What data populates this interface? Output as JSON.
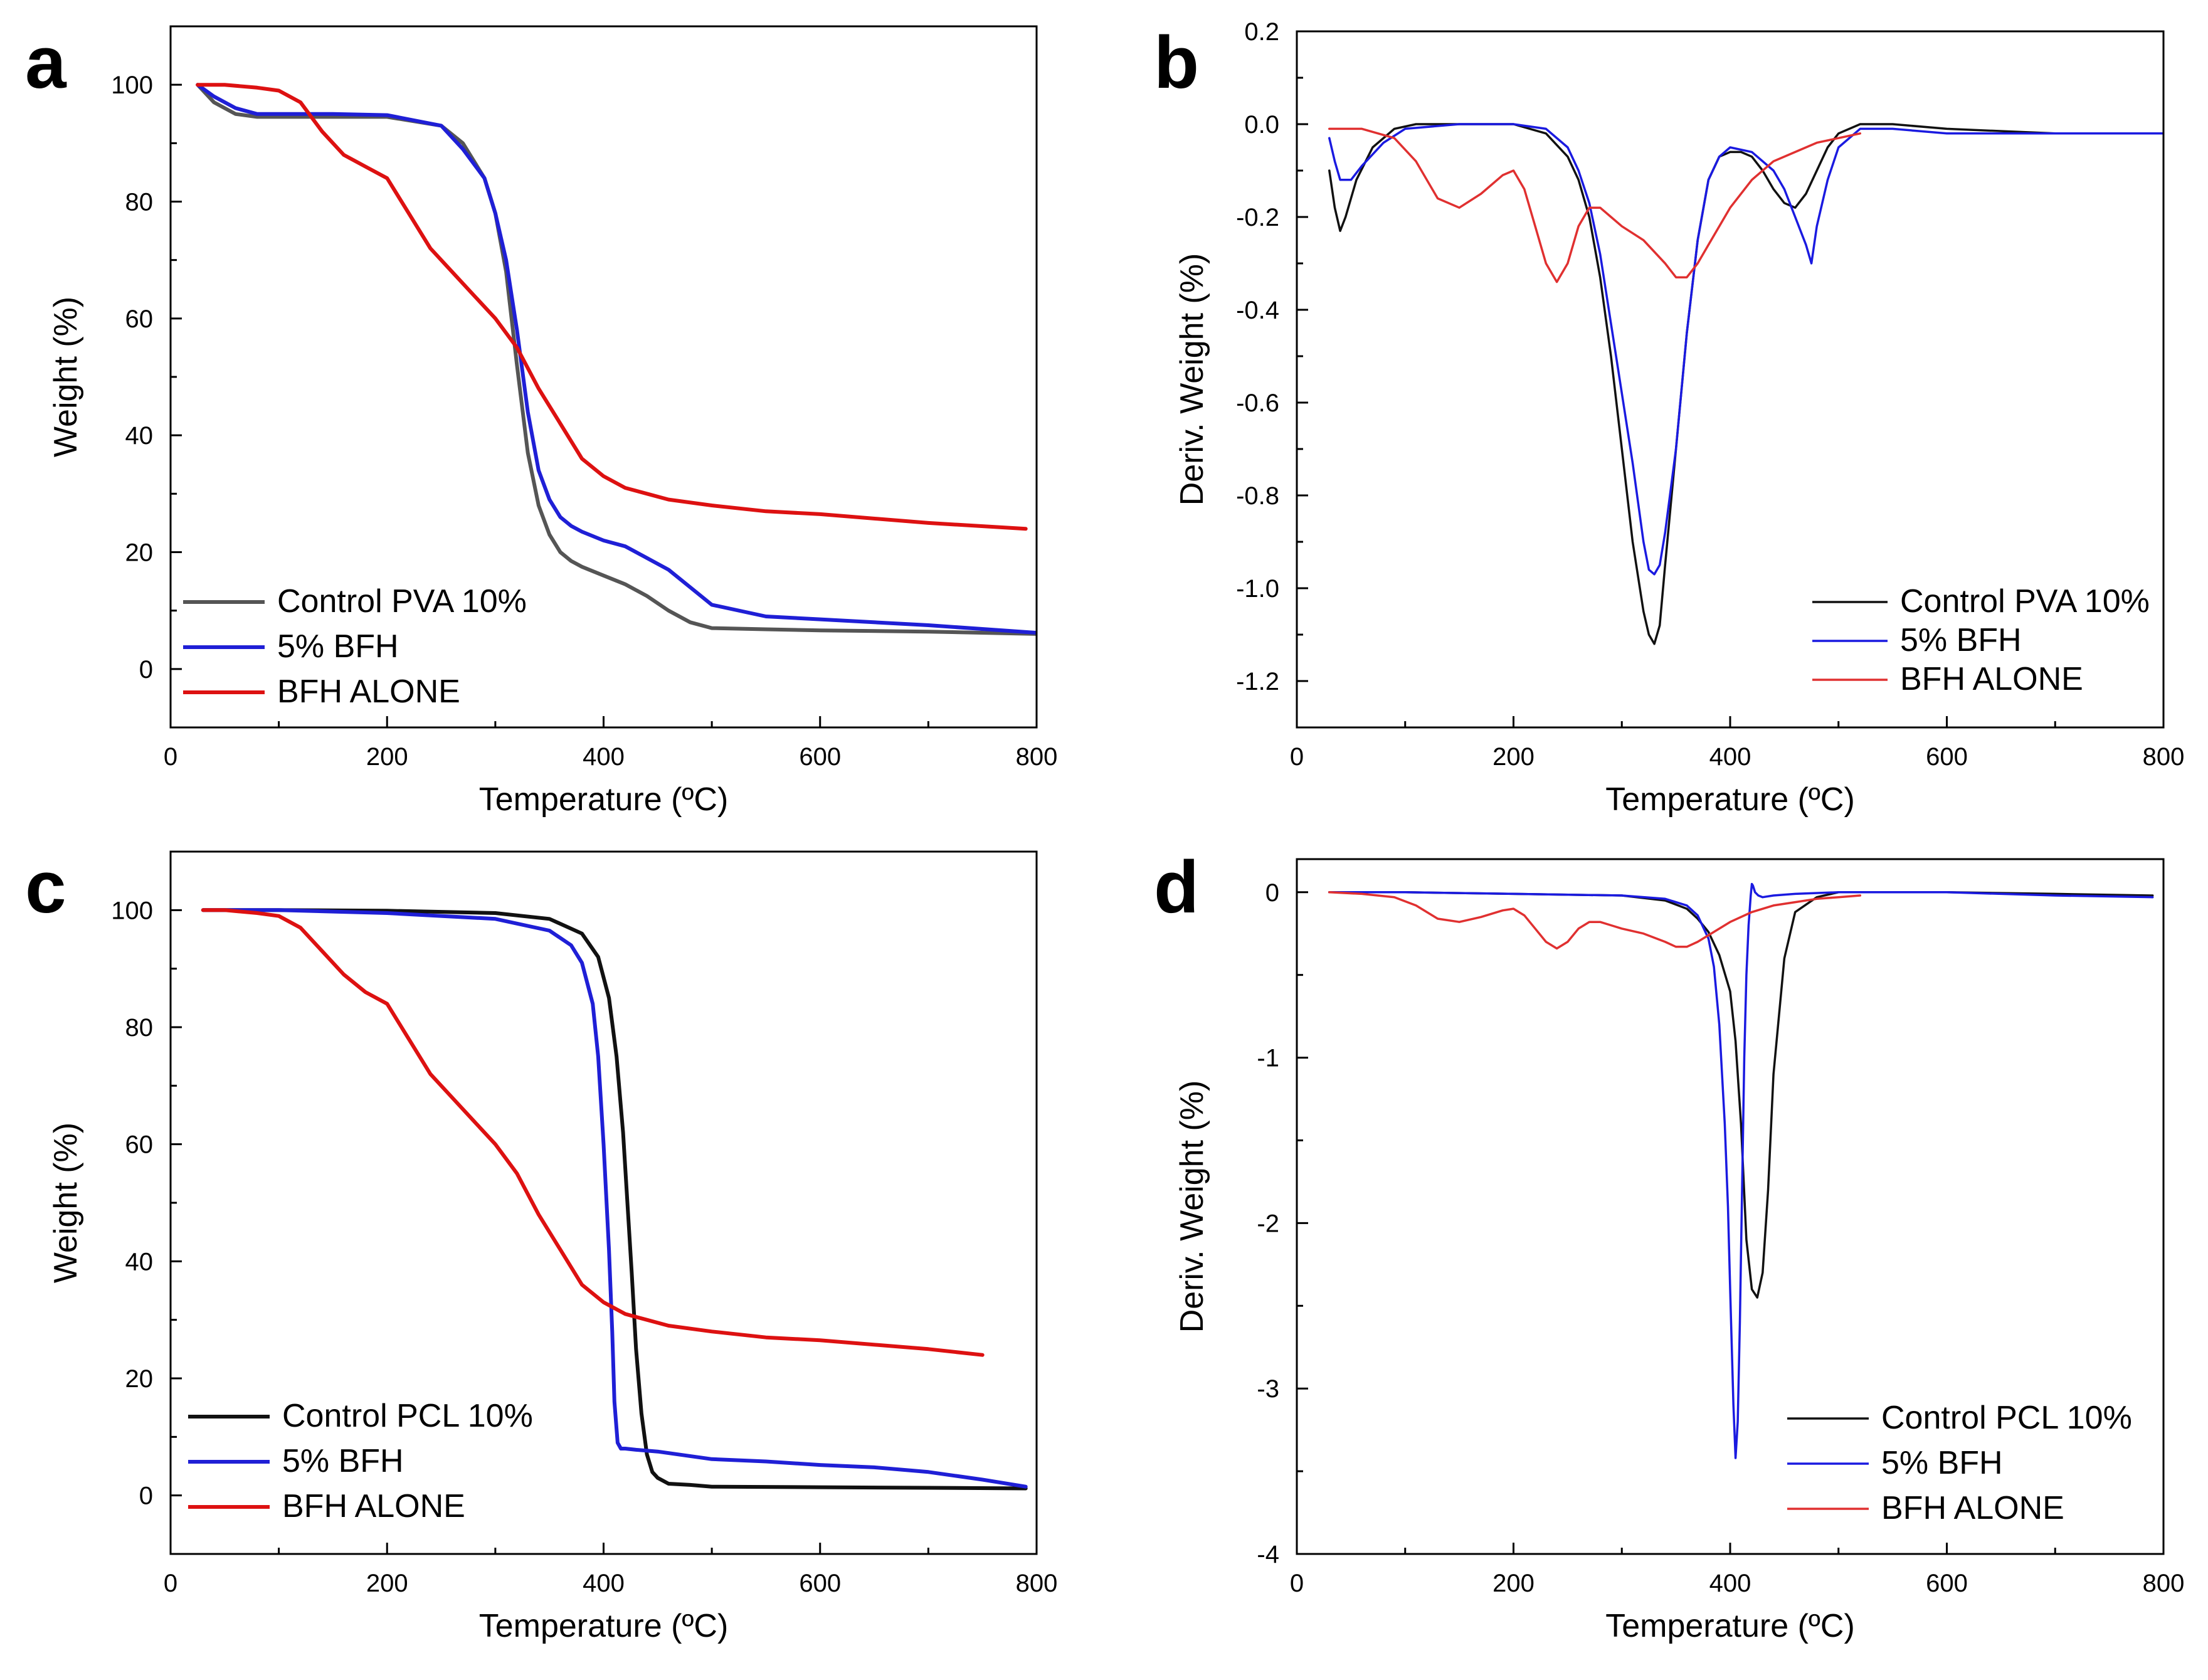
{
  "chart_data": [
    {
      "panel": "a",
      "type": "line",
      "xlabel": "Temperature (ºC)",
      "ylabel": "Weight (%)",
      "xlim": [
        0,
        800
      ],
      "ylim": [
        -10,
        110
      ],
      "xticks": [
        0,
        200,
        400,
        600,
        800
      ],
      "yticks": [
        0,
        20,
        40,
        60,
        80,
        100
      ],
      "legend_position": "bottom-left",
      "series": [
        {
          "name": "Control PVA 10%",
          "color": "#555555",
          "x": [
            25,
            40,
            60,
            80,
            100,
            150,
            200,
            250,
            270,
            290,
            300,
            310,
            320,
            330,
            340,
            350,
            360,
            370,
            380,
            400,
            420,
            440,
            460,
            480,
            500,
            550,
            600,
            700,
            800
          ],
          "y": [
            100,
            97,
            95,
            94.5,
            94.5,
            94.5,
            94.5,
            93,
            90,
            84,
            78,
            68,
            52,
            37,
            28,
            23,
            20,
            18.5,
            17.5,
            16,
            14.5,
            12.5,
            10,
            8,
            7,
            6.8,
            6.6,
            6.4,
            6
          ]
        },
        {
          "name": "5% BFH",
          "color": "#1f1fd6",
          "x": [
            25,
            40,
            60,
            80,
            100,
            150,
            200,
            250,
            270,
            290,
            300,
            310,
            320,
            330,
            340,
            350,
            360,
            370,
            380,
            400,
            420,
            440,
            460,
            480,
            500,
            550,
            600,
            700,
            800
          ],
          "y": [
            100,
            98,
            96,
            95,
            95,
            95,
            94.8,
            93,
            89,
            84,
            78,
            70,
            58,
            44,
            34,
            29,
            26,
            24.5,
            23.5,
            22,
            21,
            19,
            17,
            14,
            11,
            9,
            8.5,
            7.5,
            6.2
          ]
        },
        {
          "name": "BFH ALONE",
          "color": "#dd1111",
          "x": [
            25,
            50,
            80,
            100,
            120,
            140,
            160,
            180,
            200,
            220,
            240,
            260,
            280,
            300,
            320,
            340,
            360,
            380,
            400,
            420,
            440,
            460,
            500,
            550,
            600,
            700,
            790
          ],
          "y": [
            100,
            100,
            99.5,
            99,
            97,
            92,
            88,
            86,
            84,
            78,
            72,
            68,
            64,
            60,
            55,
            48,
            42,
            36,
            33,
            31,
            30,
            29,
            28,
            27,
            26.5,
            25,
            24
          ]
        }
      ]
    },
    {
      "panel": "b",
      "type": "line",
      "xlabel": "Temperature (ºC)",
      "ylabel": "Deriv. Weight (%)",
      "xlim": [
        0,
        800
      ],
      "ylim": [
        -1.3,
        0.2
      ],
      "xticks": [
        0,
        200,
        400,
        600,
        800
      ],
      "yticks": [
        0.2,
        0.0,
        -0.2,
        -0.4,
        -0.6,
        -0.8,
        -1.0,
        -1.2
      ],
      "yticklabels": [
        "0.2",
        "0.0",
        "-0.2",
        "-0.4",
        "-0.6",
        "-0.8",
        "-1.0",
        "-1.2"
      ],
      "legend_position": "bottom-right",
      "series": [
        {
          "name": "Control PVA 10%",
          "color": "#111111",
          "x": [
            30,
            35,
            40,
            45,
            55,
            70,
            90,
            110,
            150,
            200,
            230,
            250,
            260,
            270,
            280,
            290,
            300,
            310,
            320,
            325,
            330,
            335,
            340,
            350,
            360,
            370,
            380,
            390,
            400,
            410,
            420,
            430,
            440,
            450,
            460,
            470,
            480,
            490,
            500,
            520,
            550,
            600,
            700,
            800
          ],
          "y": [
            -0.1,
            -0.18,
            -0.23,
            -0.2,
            -0.12,
            -0.05,
            -0.01,
            0.0,
            0.0,
            0.0,
            -0.02,
            -0.07,
            -0.12,
            -0.2,
            -0.33,
            -0.5,
            -0.7,
            -0.9,
            -1.05,
            -1.1,
            -1.12,
            -1.08,
            -0.95,
            -0.7,
            -0.45,
            -0.25,
            -0.12,
            -0.07,
            -0.06,
            -0.06,
            -0.07,
            -0.1,
            -0.14,
            -0.17,
            -0.18,
            -0.15,
            -0.1,
            -0.05,
            -0.02,
            0.0,
            0.0,
            -0.01,
            -0.02,
            -0.02
          ]
        },
        {
          "name": "5% BFH",
          "color": "#1a1ae0",
          "x": [
            30,
            35,
            40,
            50,
            60,
            80,
            100,
            150,
            200,
            230,
            250,
            260,
            270,
            280,
            290,
            300,
            310,
            320,
            325,
            330,
            335,
            340,
            350,
            360,
            370,
            380,
            390,
            400,
            420,
            440,
            450,
            460,
            470,
            475,
            480,
            490,
            500,
            520,
            550,
            600,
            700,
            800
          ],
          "y": [
            -0.03,
            -0.08,
            -0.12,
            -0.12,
            -0.09,
            -0.04,
            -0.01,
            0.0,
            0.0,
            -0.01,
            -0.05,
            -0.1,
            -0.17,
            -0.28,
            -0.43,
            -0.58,
            -0.73,
            -0.9,
            -0.96,
            -0.97,
            -0.95,
            -0.88,
            -0.7,
            -0.45,
            -0.25,
            -0.12,
            -0.07,
            -0.05,
            -0.06,
            -0.1,
            -0.14,
            -0.2,
            -0.26,
            -0.3,
            -0.22,
            -0.12,
            -0.05,
            -0.01,
            -0.01,
            -0.02,
            -0.02,
            -0.02
          ]
        },
        {
          "name": "BFH ALONE",
          "color": "#e03030",
          "x": [
            30,
            60,
            90,
            110,
            130,
            150,
            170,
            190,
            200,
            210,
            220,
            230,
            240,
            250,
            260,
            270,
            280,
            290,
            300,
            320,
            340,
            350,
            360,
            370,
            380,
            400,
            420,
            440,
            460,
            480,
            500,
            520
          ],
          "y": [
            -0.01,
            -0.01,
            -0.03,
            -0.08,
            -0.16,
            -0.18,
            -0.15,
            -0.11,
            -0.1,
            -0.14,
            -0.22,
            -0.3,
            -0.34,
            -0.3,
            -0.22,
            -0.18,
            -0.18,
            -0.2,
            -0.22,
            -0.25,
            -0.3,
            -0.33,
            -0.33,
            -0.3,
            -0.26,
            -0.18,
            -0.12,
            -0.08,
            -0.06,
            -0.04,
            -0.03,
            -0.02
          ]
        }
      ]
    },
    {
      "panel": "c",
      "type": "line",
      "xlabel": "Temperature (ºC)",
      "ylabel": "Weight (%)",
      "xlim": [
        0,
        800
      ],
      "ylim": [
        -10,
        110
      ],
      "xticks": [
        0,
        200,
        400,
        600,
        800
      ],
      "yticks": [
        0,
        20,
        40,
        60,
        80,
        100
      ],
      "legend_position": "bottom-left",
      "series": [
        {
          "name": "Control PCL 10%",
          "color": "#111111",
          "x": [
            30,
            100,
            200,
            300,
            350,
            380,
            395,
            405,
            412,
            418,
            422,
            426,
            430,
            435,
            440,
            445,
            450,
            460,
            480,
            500,
            600,
            700,
            790
          ],
          "y": [
            100,
            100,
            99.9,
            99.5,
            98.5,
            96,
            92,
            85,
            75,
            62,
            50,
            38,
            25,
            14,
            7,
            4,
            3,
            2,
            1.8,
            1.5,
            1.4,
            1.3,
            1.2
          ]
        },
        {
          "name": "5% BFH",
          "color": "#1f1fd6",
          "x": [
            30,
            100,
            200,
            300,
            350,
            370,
            380,
            390,
            395,
            400,
            405,
            408,
            410,
            413,
            416,
            420,
            430,
            450,
            500,
            550,
            600,
            650,
            700,
            750,
            790
          ],
          "y": [
            100,
            100,
            99.5,
            98.5,
            96.5,
            94,
            91,
            84,
            75,
            60,
            42,
            28,
            16,
            9,
            8,
            8,
            7.8,
            7.5,
            6.2,
            5.8,
            5.2,
            4.8,
            4,
            2.7,
            1.5
          ]
        },
        {
          "name": "BFH ALONE",
          "color": "#dd1111",
          "x": [
            30,
            50,
            80,
            100,
            120,
            140,
            160,
            180,
            200,
            220,
            240,
            260,
            280,
            300,
            320,
            340,
            360,
            380,
            400,
            420,
            440,
            460,
            500,
            550,
            600,
            700,
            750
          ],
          "y": [
            100,
            100,
            99.5,
            99,
            97,
            93,
            89,
            86,
            84,
            78,
            72,
            68,
            64,
            60,
            55,
            48,
            42,
            36,
            33,
            31,
            30,
            29,
            28,
            27,
            26.5,
            25,
            24
          ]
        }
      ]
    },
    {
      "panel": "d",
      "type": "line",
      "xlabel": "Temperature (ºC)",
      "ylabel": "Deriv. Weight (%)",
      "xlim": [
        0,
        800
      ],
      "ylim": [
        -4,
        0.2
      ],
      "xticks": [
        0,
        200,
        400,
        600,
        800
      ],
      "yticks": [
        0,
        -1,
        -2,
        -3,
        -4
      ],
      "yticklabels": [
        "0",
        "-1",
        "-2",
        "-3",
        "-4"
      ],
      "legend_position": "bottom-right",
      "series": [
        {
          "name": "Control PCL 10%",
          "color": "#111111",
          "x": [
            30,
            100,
            200,
            300,
            340,
            360,
            370,
            380,
            390,
            400,
            405,
            410,
            415,
            420,
            425,
            430,
            435,
            440,
            450,
            460,
            480,
            500,
            600,
            700,
            790
          ],
          "y": [
            0,
            0,
            -0.01,
            -0.02,
            -0.05,
            -0.1,
            -0.16,
            -0.24,
            -0.38,
            -0.6,
            -0.9,
            -1.4,
            -2.1,
            -2.4,
            -2.45,
            -2.3,
            -1.8,
            -1.1,
            -0.4,
            -0.12,
            -0.03,
            0,
            0,
            -0.01,
            -0.02
          ]
        },
        {
          "name": "5% BFH",
          "color": "#1a1ae0",
          "x": [
            30,
            100,
            200,
            300,
            340,
            360,
            370,
            380,
            385,
            390,
            395,
            398,
            400,
            403,
            405,
            407,
            409,
            411,
            413,
            415,
            417,
            419,
            420,
            421,
            423,
            426,
            430,
            440,
            460,
            500,
            600,
            700,
            790
          ],
          "y": [
            0,
            0,
            -0.01,
            -0.02,
            -0.04,
            -0.08,
            -0.14,
            -0.28,
            -0.45,
            -0.8,
            -1.4,
            -1.9,
            -2.4,
            -3.1,
            -3.42,
            -3.2,
            -2.6,
            -1.8,
            -1.0,
            -0.5,
            -0.2,
            -0.02,
            0.05,
            0.04,
            0.0,
            -0.02,
            -0.03,
            -0.02,
            -0.01,
            0,
            0,
            -0.02,
            -0.03
          ]
        },
        {
          "name": "BFH ALONE",
          "color": "#e03030",
          "x": [
            30,
            60,
            90,
            110,
            130,
            150,
            170,
            190,
            200,
            210,
            220,
            230,
            240,
            250,
            260,
            270,
            280,
            290,
            300,
            320,
            340,
            350,
            360,
            370,
            380,
            400,
            420,
            440,
            460,
            480,
            500,
            520
          ],
          "y": [
            0,
            -0.01,
            -0.03,
            -0.08,
            -0.16,
            -0.18,
            -0.15,
            -0.11,
            -0.1,
            -0.14,
            -0.22,
            -0.3,
            -0.34,
            -0.3,
            -0.22,
            -0.18,
            -0.18,
            -0.2,
            -0.22,
            -0.25,
            -0.3,
            -0.33,
            -0.33,
            -0.3,
            -0.26,
            -0.18,
            -0.12,
            -0.08,
            -0.06,
            -0.04,
            -0.03,
            -0.02
          ]
        }
      ]
    }
  ]
}
